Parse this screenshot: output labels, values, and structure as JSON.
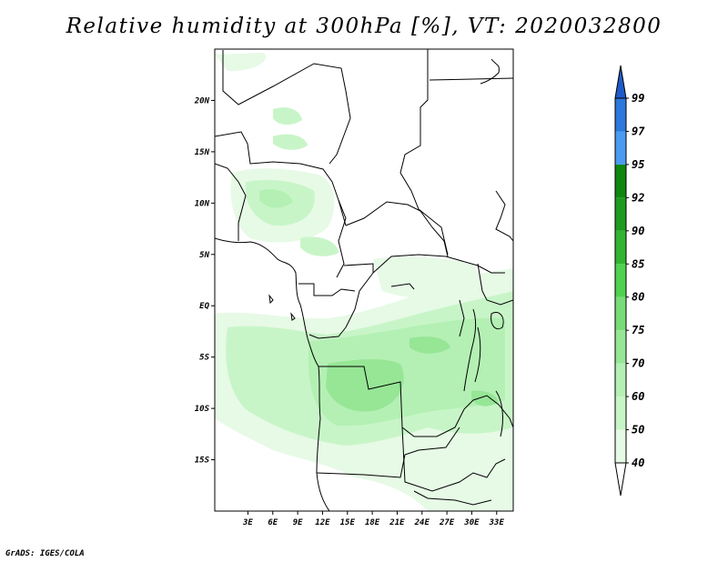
{
  "title": "Relative humidity at 300hPa [%], VT: 2020032800",
  "credit": "GrADS: IGES/COLA",
  "map": {
    "lon_range": [
      -1,
      35
    ],
    "lat_range": [
      -20,
      25
    ],
    "lat_ticks": [
      {
        "value": 20,
        "label": "20N"
      },
      {
        "value": 15,
        "label": "15N"
      },
      {
        "value": 10,
        "label": "10N"
      },
      {
        "value": 5,
        "label": "5N"
      },
      {
        "value": 0,
        "label": "EQ"
      },
      {
        "value": -5,
        "label": "5S"
      },
      {
        "value": -10,
        "label": "10S"
      },
      {
        "value": -15,
        "label": "15S"
      }
    ],
    "lon_ticks": [
      {
        "value": 3,
        "label": "3E"
      },
      {
        "value": 6,
        "label": "6E"
      },
      {
        "value": 9,
        "label": "9E"
      },
      {
        "value": 12,
        "label": "12E"
      },
      {
        "value": 15,
        "label": "15E"
      },
      {
        "value": 18,
        "label": "18E"
      },
      {
        "value": 21,
        "label": "21E"
      },
      {
        "value": 24,
        "label": "24E"
      },
      {
        "value": 27,
        "label": "27E"
      },
      {
        "value": 30,
        "label": "30E"
      },
      {
        "value": 33,
        "label": "33E"
      }
    ]
  },
  "colorbar": {
    "levels": [
      "40",
      "50",
      "60",
      "70",
      "75",
      "80",
      "85",
      "90",
      "92",
      "95",
      "97",
      "99"
    ],
    "colors": [
      "#ffffff",
      "#e6fae6",
      "#c8f5c8",
      "#b4f0b4",
      "#96e696",
      "#78dc78",
      "#50d250",
      "#32b432",
      "#1e9b1e",
      "#0f870f",
      "#4b9bf0",
      "#2d78dc",
      "#1e5ac8"
    ]
  },
  "colors": {
    "frame": "#000000",
    "borders": "#000000"
  }
}
